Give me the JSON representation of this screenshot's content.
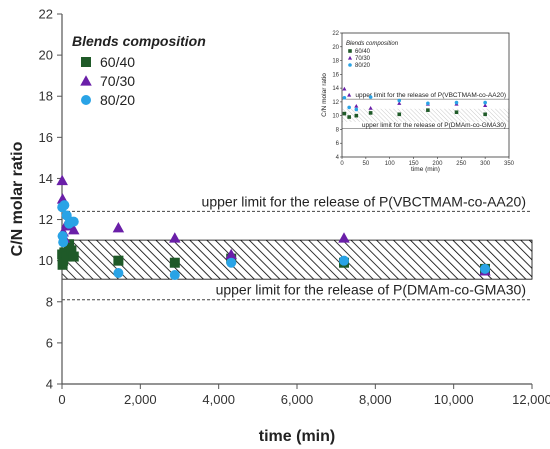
{
  "chart_data": [
    {
      "type": "scatter",
      "title": "",
      "xlabel": "time (min)",
      "ylabel": "C/N molar ratio",
      "xlim": [
        0,
        12000
      ],
      "ylim": [
        4,
        22
      ],
      "xticks": [
        0,
        2000,
        4000,
        6000,
        8000,
        10000,
        12000
      ],
      "xtick_labels": [
        "0",
        "2,000",
        "4,000",
        "6,000",
        "8,000",
        "10,000",
        "12,000"
      ],
      "yticks": [
        4,
        6,
        8,
        10,
        12,
        14,
        16,
        18,
        20,
        22
      ],
      "legend_title": "Blends composition",
      "legend_position": "top-left",
      "grid": false,
      "series": [
        {
          "name": "60/40",
          "marker": "square",
          "color": "#1f5a28",
          "x": [
            5,
            15,
            30,
            60,
            120,
            180,
            240,
            300,
            1440,
            2880,
            4320,
            7200,
            10800
          ],
          "y": [
            10.3,
            9.8,
            10.0,
            10.4,
            10.2,
            10.8,
            10.5,
            10.2,
            10.0,
            9.9,
            10.1,
            9.9,
            9.6
          ]
        },
        {
          "name": "70/30",
          "marker": "triangle",
          "color": "#6a1fa8",
          "x": [
            5,
            15,
            30,
            60,
            120,
            180,
            240,
            300,
            1440,
            2880,
            4320,
            7200,
            10800
          ],
          "y": [
            13.9,
            13.0,
            11.4,
            11.1,
            11.8,
            11.7,
            11.7,
            11.5,
            11.6,
            11.1,
            10.3,
            11.1,
            9.5
          ]
        },
        {
          "name": "80/20",
          "marker": "circle",
          "color": "#29a3e6",
          "x": [
            5,
            15,
            30,
            60,
            120,
            180,
            240,
            300,
            1440,
            2880,
            4320,
            7200,
            10800
          ],
          "y": [
            12.6,
            11.2,
            10.9,
            12.7,
            12.2,
            11.8,
            11.9,
            11.9,
            9.4,
            9.3,
            9.9,
            10.0,
            9.6
          ]
        }
      ],
      "reference_lines": [
        {
          "y": 12.4,
          "label": "upper limit for the release of P(VBCTMAM-co-AA20)"
        },
        {
          "y": 8.1,
          "label": "upper limit for the release of P(DMAm-co-GMA30)"
        }
      ],
      "hatched_band": {
        "y_min": 9.1,
        "y_max": 11.0
      }
    },
    {
      "type": "scatter",
      "title": "",
      "xlabel": "time (min)",
      "ylabel": "C/N molar ratio",
      "xlim": [
        0,
        350
      ],
      "ylim": [
        4,
        22
      ],
      "xticks": [
        0,
        50,
        100,
        150,
        200,
        250,
        300,
        350
      ],
      "yticks": [
        4,
        6,
        8,
        10,
        12,
        14,
        16,
        18,
        20,
        22
      ],
      "legend_title": "Blends composition",
      "legend_position": "top-left",
      "series": [
        {
          "name": "60/40",
          "x": [
            5,
            15,
            30,
            60,
            120,
            180,
            240,
            300
          ],
          "y": [
            10.3,
            9.8,
            10.0,
            10.4,
            10.2,
            10.8,
            10.5,
            10.2
          ]
        },
        {
          "name": "70/30",
          "x": [
            5,
            15,
            30,
            60,
            120,
            180,
            240,
            300
          ],
          "y": [
            13.9,
            13.0,
            11.4,
            11.1,
            11.8,
            11.7,
            11.7,
            11.5
          ]
        },
        {
          "name": "80/20",
          "x": [
            5,
            15,
            30,
            60,
            120,
            180,
            240,
            300
          ],
          "y": [
            12.6,
            11.2,
            10.9,
            12.7,
            12.2,
            11.8,
            11.9,
            11.9
          ]
        }
      ],
      "reference_lines": [
        {
          "y": 12.4,
          "label": "upper limit for the release of P(VBCTMAM-co-AA20)"
        },
        {
          "y": 8.1,
          "label": "upper limit for the release of P(DMAm-co-GMA30)"
        }
      ]
    }
  ]
}
